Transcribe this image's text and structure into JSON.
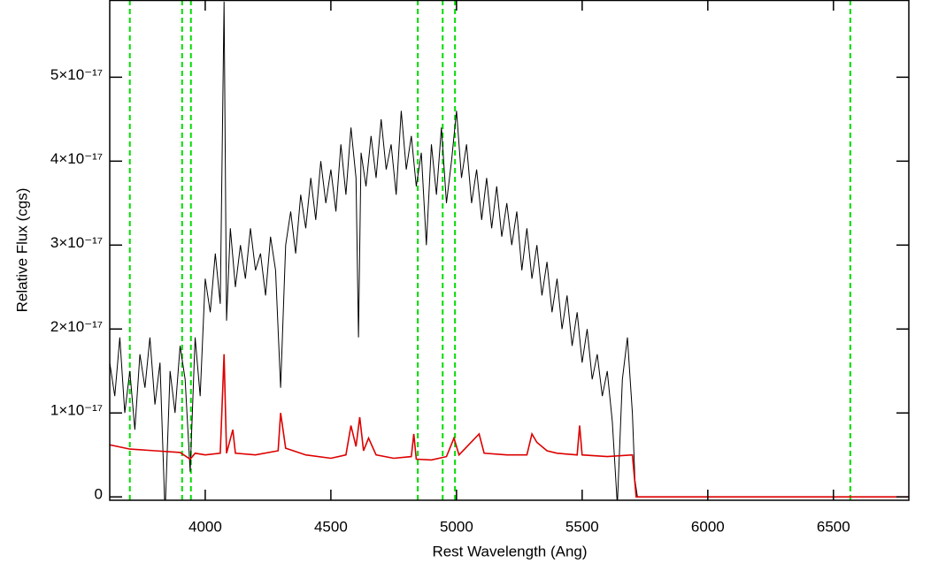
{
  "chart_data": {
    "type": "line",
    "xlabel": "Rest Wavelength (Ang)",
    "ylabel": "Relative Flux (cgs)",
    "xlim": [
      3620,
      6800
    ],
    "ylim": [
      -4e-19,
      5.92e-17
    ],
    "xticks": [
      4000,
      4500,
      5000,
      5500,
      6000,
      6500
    ],
    "yticks": [
      0,
      {
        "value": 1e-17,
        "label": "1×10⁻¹⁷"
      },
      {
        "value": 2e-17,
        "label": "2×10⁻¹⁷"
      },
      {
        "value": 3e-17,
        "label": "3×10⁻¹⁷"
      },
      {
        "value": 4e-17,
        "label": "4×10⁻¹⁷"
      },
      {
        "value": 5e-17,
        "label": "5×10⁻¹⁷"
      }
    ],
    "vlines": {
      "color": "#00dd00",
      "x": [
        3700,
        3908,
        3943,
        4846,
        4945,
        4994,
        6567
      ]
    },
    "series": [
      {
        "color": "#000000",
        "x": [
          3620,
          3640,
          3660,
          3680,
          3700,
          3720,
          3740,
          3760,
          3780,
          3800,
          3820,
          3840,
          3860,
          3880,
          3900,
          3920,
          3940,
          3960,
          3980,
          4000,
          4020,
          4040,
          4060,
          4075,
          4085,
          4100,
          4120,
          4140,
          4160,
          4180,
          4200,
          4220,
          4240,
          4260,
          4280,
          4300,
          4320,
          4340,
          4360,
          4380,
          4400,
          4420,
          4440,
          4460,
          4480,
          4500,
          4520,
          4540,
          4560,
          4580,
          4600,
          4610,
          4620,
          4640,
          4660,
          4680,
          4700,
          4720,
          4740,
          4760,
          4780,
          4800,
          4820,
          4840,
          4860,
          4880,
          4900,
          4920,
          4940,
          4960,
          4980,
          5000,
          5020,
          5040,
          5060,
          5080,
          5100,
          5120,
          5140,
          5160,
          5180,
          5200,
          5220,
          5240,
          5260,
          5280,
          5300,
          5320,
          5340,
          5360,
          5380,
          5400,
          5420,
          5440,
          5460,
          5480,
          5500,
          5520,
          5540,
          5560,
          5580,
          5600,
          5620,
          5640,
          5660,
          5680,
          5700,
          5710,
          5720,
          6800
        ],
        "values": [
          1.6e-17,
          1.2e-17,
          1.9e-17,
          1e-17,
          1.5e-17,
          8e-18,
          1.7e-17,
          1.3e-17,
          1.9e-17,
          1.1e-17,
          1.6e-17,
          -2e-18,
          1.5e-17,
          1e-17,
          1.8e-17,
          1.4e-17,
          3e-18,
          1.9e-17,
          1.2e-17,
          2.6e-17,
          2.2e-17,
          2.9e-17,
          2.3e-17,
          5.9e-17,
          2.1e-17,
          3.2e-17,
          2.5e-17,
          3e-17,
          2.6e-17,
          3.2e-17,
          2.7e-17,
          2.9e-17,
          2.4e-17,
          3.1e-17,
          2.7e-17,
          1.3e-17,
          3e-17,
          3.4e-17,
          2.9e-17,
          3.6e-17,
          3.2e-17,
          3.8e-17,
          3.3e-17,
          4e-17,
          3.5e-17,
          3.9e-17,
          3.4e-17,
          4.2e-17,
          3.6e-17,
          4.4e-17,
          3.8e-17,
          1.9e-17,
          4.1e-17,
          3.7e-17,
          4.3e-17,
          3.8e-17,
          4.5e-17,
          3.9e-17,
          4.2e-17,
          3.6e-17,
          4.6e-17,
          3.9e-17,
          4.3e-17,
          3.7e-17,
          4.1e-17,
          3e-17,
          4.2e-17,
          3.6e-17,
          4.4e-17,
          3.5e-17,
          4e-17,
          4.6e-17,
          3.8e-17,
          4.2e-17,
          3.5e-17,
          3.9e-17,
          3.3e-17,
          3.8e-17,
          3.2e-17,
          3.7e-17,
          3.1e-17,
          3.5e-17,
          3e-17,
          3.4e-17,
          2.7e-17,
          3.2e-17,
          2.6e-17,
          3e-17,
          2.4e-17,
          2.8e-17,
          2.2e-17,
          2.6e-17,
          2e-17,
          2.4e-17,
          1.8e-17,
          2.2e-17,
          1.6e-17,
          2e-17,
          1.4e-17,
          1.7e-17,
          1.2e-17,
          1.5e-17,
          9e-18,
          -1e-18,
          1.4e-17,
          1.9e-17,
          1e-17,
          2e-18,
          0,
          0
        ]
      },
      {
        "color": "#dd0000",
        "x": [
          3620,
          3700,
          3800,
          3900,
          3940,
          3960,
          4000,
          4060,
          4075,
          4085,
          4110,
          4120,
          4200,
          4290,
          4300,
          4320,
          4400,
          4500,
          4560,
          4580,
          4600,
          4615,
          4630,
          4650,
          4680,
          4750,
          4820,
          4830,
          4840,
          4900,
          4960,
          4990,
          5010,
          5090,
          5110,
          5200,
          5280,
          5300,
          5320,
          5360,
          5400,
          5480,
          5490,
          5500,
          5600,
          5700,
          5715,
          6800
        ],
        "values": [
          6.2e-18,
          5.7e-18,
          5.5e-18,
          5.3e-18,
          4.5e-18,
          5.2e-18,
          5e-18,
          5.2e-18,
          1.7e-17,
          5.2e-18,
          8e-18,
          5.2e-18,
          5e-18,
          5.5e-18,
          1e-17,
          5.8e-18,
          5e-18,
          4.6e-18,
          5e-18,
          8.5e-18,
          6e-18,
          9.5e-18,
          5.5e-18,
          7e-18,
          5e-18,
          4.6e-18,
          4.8e-18,
          7.5e-18,
          4.5e-18,
          4.4e-18,
          4.8e-18,
          7e-18,
          5e-18,
          7.5e-18,
          5.2e-18,
          5e-18,
          5e-18,
          7.5e-18,
          6.5e-18,
          5.5e-18,
          5.2e-18,
          5e-18,
          8.5e-18,
          5e-18,
          4.8e-18,
          5e-18,
          0,
          0
        ]
      }
    ]
  }
}
